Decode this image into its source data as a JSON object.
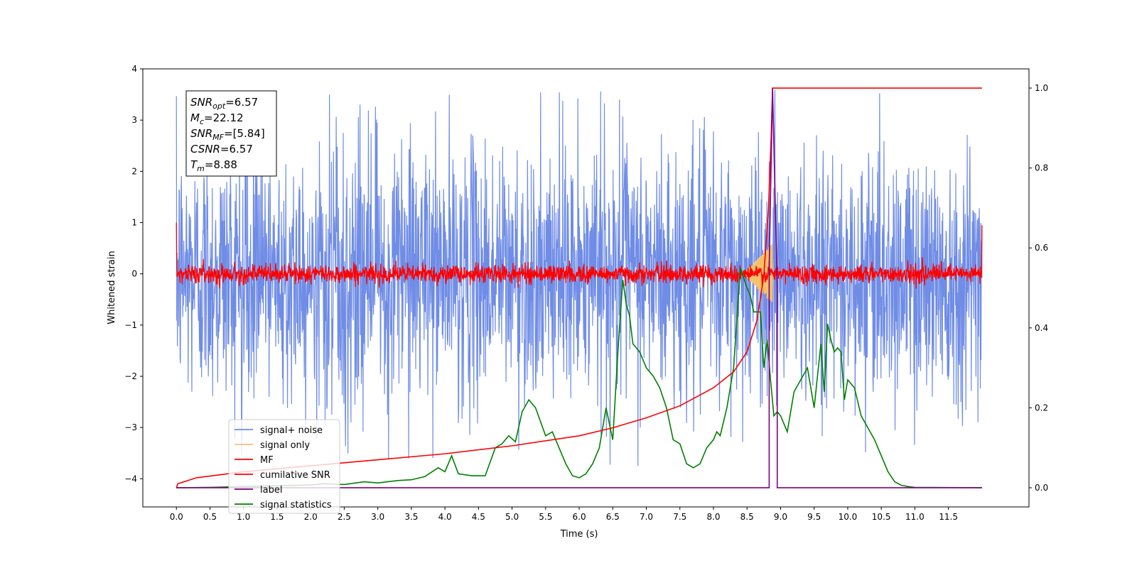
{
  "chart_data": {
    "type": "line",
    "xlabel": "Time (s)",
    "ylabel": "Whitened strain",
    "xlim": [
      -0.5,
      12.7
    ],
    "ylim_left": [
      -4.55,
      4.0
    ],
    "ylim_right": [
      -0.048,
      1.048
    ],
    "x_ticks": [
      "0.0",
      "0.5",
      "1.0",
      "1.5",
      "2.0",
      "2.5",
      "3.0",
      "3.5",
      "4.0",
      "4.5",
      "5.0",
      "5.5",
      "6.0",
      "6.5",
      "7.0",
      "7.5",
      "8.0",
      "8.5",
      "9.0",
      "9.5",
      "10.0",
      "10.5",
      "11.0",
      "11.5"
    ],
    "y_ticks_left": [
      "4",
      "3",
      "2",
      "1",
      "0",
      "−1",
      "−2",
      "−3",
      "−4"
    ],
    "y_ticks_right": [
      "1.0",
      "0.8",
      "0.6",
      "0.4",
      "0.2",
      "0.0"
    ],
    "colors": {
      "signal_noise": "#6f8ce6",
      "signal_only": "#f5c26b",
      "mf": "#ff0000",
      "cumulative_snr": "#ff0000",
      "label": "#800080",
      "signal_statistics": "#008000"
    },
    "legend": {
      "placement": "lower-left",
      "entries": [
        "signal+ noise",
        "signal only",
        "MF",
        "cumilative SNR",
        "label",
        "signal statistics"
      ]
    },
    "annotation": {
      "placement": "top-left",
      "lines": [
        {
          "base": "SNR",
          "sub": "opt",
          "value": "=6.57"
        },
        {
          "base": "M",
          "sub": "c",
          "value": "=22.12"
        },
        {
          "base": "SNR",
          "sub": "MF",
          "value": "=[5.84]"
        },
        {
          "base": "CSNR",
          "sub": "",
          "value": "=6.57"
        },
        {
          "base": "T",
          "sub": "m",
          "value": "=8.88"
        }
      ]
    },
    "series": {
      "signal_noise": {
        "x_range": [
          0,
          12.0
        ],
        "amplitude_typ": 1.6,
        "max": 3.6,
        "min": -3.8
      },
      "mf": {
        "x_range": [
          0,
          12.0
        ],
        "amplitude_typ": 0.2,
        "start": 1.0,
        "end": 0.95
      },
      "signal_only": {
        "x_range": [
          8.45,
          8.88
        ],
        "amplitude_max": 0.6
      },
      "cumulative_snr": {
        "x": [
          0,
          0.02,
          0.3,
          1,
          2,
          3,
          4,
          5,
          6,
          6.5,
          7,
          7.5,
          8,
          8.3,
          8.5,
          8.65,
          8.75,
          8.82,
          8.86,
          8.88,
          12.0
        ],
        "y": [
          0,
          0.01,
          0.025,
          0.04,
          0.055,
          0.07,
          0.085,
          0.105,
          0.13,
          0.15,
          0.175,
          0.205,
          0.25,
          0.29,
          0.34,
          0.42,
          0.53,
          0.7,
          0.88,
          1.0,
          1.0
        ]
      },
      "label": {
        "x": [
          0,
          8.83,
          8.83,
          8.88,
          8.88,
          8.95,
          8.95,
          12.0
        ],
        "y": [
          0,
          0,
          0.55,
          1.0,
          1.0,
          0.5,
          0,
          0
        ]
      },
      "signal_statistics": {
        "x": [
          0,
          0.5,
          1.0,
          1.5,
          2.0,
          2.2,
          2.5,
          2.8,
          3.0,
          3.3,
          3.5,
          3.7,
          3.9,
          4.0,
          4.1,
          4.2,
          4.4,
          4.6,
          4.75,
          4.85,
          4.95,
          5.05,
          5.15,
          5.25,
          5.35,
          5.5,
          5.6,
          5.7,
          5.8,
          5.9,
          6.0,
          6.1,
          6.2,
          6.3,
          6.4,
          6.5,
          6.58,
          6.65,
          6.7,
          6.75,
          6.8,
          6.9,
          7.0,
          7.1,
          7.2,
          7.3,
          7.4,
          7.5,
          7.6,
          7.7,
          7.8,
          7.9,
          8.0,
          8.05,
          8.1,
          8.2,
          8.3,
          8.4,
          8.5,
          8.55,
          8.6,
          8.7,
          8.75,
          8.8,
          8.85,
          8.9,
          8.95,
          9.0,
          9.1,
          9.2,
          9.3,
          9.4,
          9.5,
          9.6,
          9.65,
          9.7,
          9.75,
          9.8,
          9.85,
          9.9,
          9.95,
          10.0,
          10.1,
          10.2,
          10.3,
          10.4,
          10.5,
          10.6,
          10.7,
          10.8,
          10.9,
          11.0,
          11.5,
          12.0
        ],
        "y": [
          0,
          0.001,
          0.003,
          0.005,
          0.007,
          0.01,
          0.008,
          0.015,
          0.012,
          0.018,
          0.02,
          0.028,
          0.05,
          0.04,
          0.08,
          0.035,
          0.03,
          0.03,
          0.1,
          0.11,
          0.13,
          0.115,
          0.19,
          0.22,
          0.2,
          0.13,
          0.14,
          0.1,
          0.06,
          0.03,
          0.025,
          0.035,
          0.06,
          0.1,
          0.2,
          0.12,
          0.35,
          0.52,
          0.46,
          0.43,
          0.36,
          0.34,
          0.3,
          0.28,
          0.25,
          0.2,
          0.12,
          0.11,
          0.06,
          0.05,
          0.06,
          0.1,
          0.12,
          0.14,
          0.13,
          0.2,
          0.3,
          0.55,
          0.5,
          0.48,
          0.44,
          0.44,
          0.3,
          0.37,
          0.27,
          0.18,
          0.19,
          0.18,
          0.14,
          0.24,
          0.27,
          0.3,
          0.2,
          0.36,
          0.24,
          0.41,
          0.37,
          0.34,
          0.35,
          0.34,
          0.22,
          0.27,
          0.25,
          0.18,
          0.15,
          0.12,
          0.08,
          0.04,
          0.015,
          0.006,
          0.003,
          0.001,
          0.0005,
          0.0
        ]
      }
    }
  }
}
